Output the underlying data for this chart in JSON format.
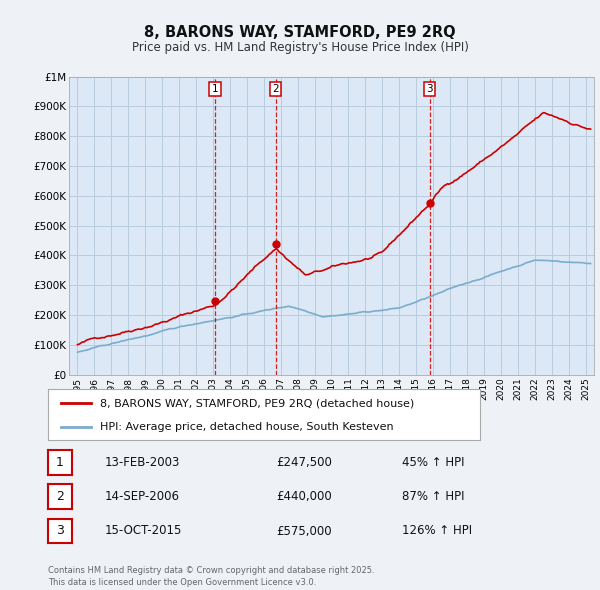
{
  "title": "8, BARONS WAY, STAMFORD, PE9 2RQ",
  "subtitle": "Price paid vs. HM Land Registry's House Price Index (HPI)",
  "bg_color": "#eef2f7",
  "plot_bg_color": "#dce8f5",
  "grid_color": "#b8ccdd",
  "red_color": "#cc0000",
  "blue_color": "#7aadcc",
  "sale_dates": [
    2003.12,
    2006.71,
    2015.79
  ],
  "sale_prices": [
    247500,
    440000,
    575000
  ],
  "sale_labels": [
    "1",
    "2",
    "3"
  ],
  "sale_info": [
    {
      "num": "1",
      "date": "13-FEB-2003",
      "price": "£247,500",
      "pct": "45% ↑ HPI"
    },
    {
      "num": "2",
      "date": "14-SEP-2006",
      "price": "£440,000",
      "pct": "87% ↑ HPI"
    },
    {
      "num": "3",
      "date": "15-OCT-2015",
      "price": "£575,000",
      "pct": "126% ↑ HPI"
    }
  ],
  "legend1": "8, BARONS WAY, STAMFORD, PE9 2RQ (detached house)",
  "legend2": "HPI: Average price, detached house, South Kesteven",
  "footer": "Contains HM Land Registry data © Crown copyright and database right 2025.\nThis data is licensed under the Open Government Licence v3.0.",
  "ylim": [
    0,
    1000000
  ],
  "yticks": [
    0,
    100000,
    200000,
    300000,
    400000,
    500000,
    600000,
    700000,
    800000,
    900000,
    1000000
  ],
  "ytick_labels": [
    "£0",
    "£100K",
    "£200K",
    "£300K",
    "£400K",
    "£500K",
    "£600K",
    "£700K",
    "£800K",
    "£900K",
    "£1M"
  ],
  "xlim": [
    1994.5,
    2025.5
  ],
  "xticks": [
    1995,
    1996,
    1997,
    1998,
    1999,
    2000,
    2001,
    2002,
    2003,
    2004,
    2005,
    2006,
    2007,
    2008,
    2009,
    2010,
    2011,
    2012,
    2013,
    2014,
    2015,
    2016,
    2017,
    2018,
    2019,
    2020,
    2021,
    2022,
    2023,
    2024,
    2025
  ]
}
